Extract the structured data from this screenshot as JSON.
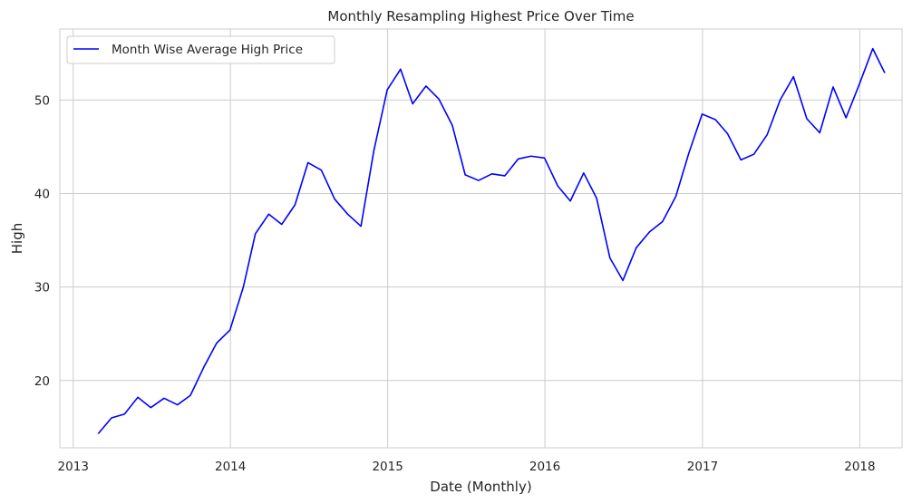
{
  "chart_data": {
    "type": "line",
    "title": "Monthly Resampling Highest Price Over Time",
    "xlabel": "Date (Monthly)",
    "ylabel": "High",
    "xlim": [
      "2012-12-01",
      "2018-04-09"
    ],
    "ylim": [
      12.8,
      57.6
    ],
    "x_ticks": [
      "2013",
      "2014",
      "2015",
      "2016",
      "2017",
      "2018"
    ],
    "y_ticks": [
      20,
      30,
      40,
      50
    ],
    "grid": true,
    "legend_position": "top-left",
    "series": [
      {
        "name": "Month Wise Average High Price",
        "color": "#0000ff",
        "points": [
          [
            "2013-02-28",
            14.3
          ],
          [
            "2013-03-31",
            16.0
          ],
          [
            "2013-04-30",
            16.4
          ],
          [
            "2013-05-31",
            18.2
          ],
          [
            "2013-06-30",
            17.1
          ],
          [
            "2013-07-31",
            18.1
          ],
          [
            "2013-08-31",
            17.4
          ],
          [
            "2013-09-30",
            18.4
          ],
          [
            "2013-10-31",
            21.4
          ],
          [
            "2013-11-30",
            24.0
          ],
          [
            "2013-12-31",
            25.4
          ],
          [
            "2014-01-31",
            30.0
          ],
          [
            "2014-02-28",
            35.7
          ],
          [
            "2014-03-31",
            37.8
          ],
          [
            "2014-04-30",
            36.7
          ],
          [
            "2014-05-31",
            38.8
          ],
          [
            "2014-06-30",
            43.3
          ],
          [
            "2014-07-31",
            42.5
          ],
          [
            "2014-08-31",
            39.4
          ],
          [
            "2014-09-30",
            37.8
          ],
          [
            "2014-10-31",
            36.5
          ],
          [
            "2014-11-30",
            44.6
          ],
          [
            "2014-12-31",
            51.1
          ],
          [
            "2015-01-31",
            53.3
          ],
          [
            "2015-02-28",
            49.6
          ],
          [
            "2015-03-31",
            51.5
          ],
          [
            "2015-04-30",
            50.1
          ],
          [
            "2015-05-31",
            47.3
          ],
          [
            "2015-06-30",
            42.0
          ],
          [
            "2015-07-31",
            41.4
          ],
          [
            "2015-08-31",
            42.1
          ],
          [
            "2015-09-30",
            41.9
          ],
          [
            "2015-10-31",
            43.7
          ],
          [
            "2015-11-30",
            44.0
          ],
          [
            "2015-12-31",
            43.8
          ],
          [
            "2016-01-31",
            40.8
          ],
          [
            "2016-02-29",
            39.2
          ],
          [
            "2016-03-31",
            42.2
          ],
          [
            "2016-04-30",
            39.5
          ],
          [
            "2016-05-31",
            33.1
          ],
          [
            "2016-06-30",
            30.7
          ],
          [
            "2016-07-31",
            34.2
          ],
          [
            "2016-08-31",
            35.9
          ],
          [
            "2016-09-30",
            37.0
          ],
          [
            "2016-10-31",
            39.7
          ],
          [
            "2016-11-30",
            44.3
          ],
          [
            "2016-12-31",
            48.5
          ],
          [
            "2017-01-31",
            47.9
          ],
          [
            "2017-02-28",
            46.4
          ],
          [
            "2017-03-31",
            43.6
          ],
          [
            "2017-04-30",
            44.2
          ],
          [
            "2017-05-31",
            46.3
          ],
          [
            "2017-06-30",
            50.0
          ],
          [
            "2017-07-31",
            52.5
          ],
          [
            "2017-08-31",
            48.0
          ],
          [
            "2017-09-30",
            46.5
          ],
          [
            "2017-10-31",
            51.4
          ],
          [
            "2017-11-30",
            48.1
          ],
          [
            "2017-12-31",
            51.7
          ],
          [
            "2018-01-31",
            55.5
          ],
          [
            "2018-02-28",
            52.9
          ]
        ]
      }
    ]
  }
}
